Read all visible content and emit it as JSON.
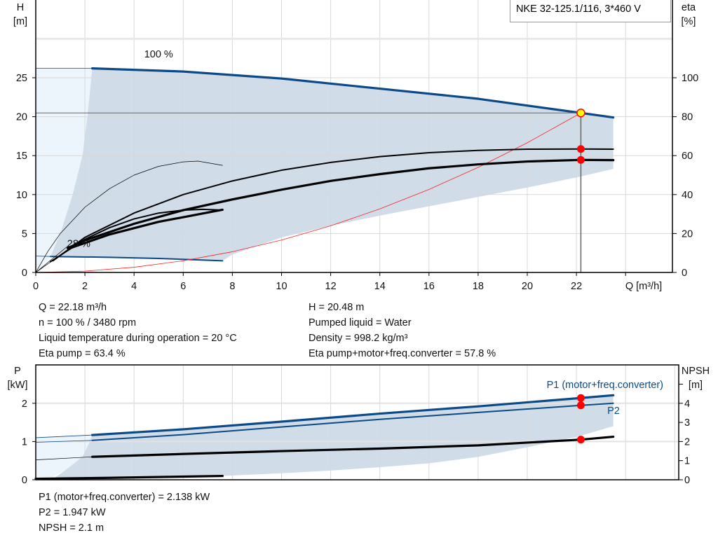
{
  "legend_title": "NKE 32-125.1/116, 3*460 V",
  "info": {
    "left": [
      "Q = 22.18 m³/h",
      "n = 100 % / 3480 rpm",
      "Liquid temperature during operation = 20 °C",
      "Eta pump = 63.4 %"
    ],
    "right": [
      "H = 20.48 m",
      "Pumped liquid = Water",
      "Density = 998.2 kg/m³",
      "Eta pump+motor+freq.converter = 57.8 %"
    ],
    "bottom": [
      "P1 (motor+freq.converter) = 2.138 kW",
      "P2 = 1.947 kW",
      "NPSH = 2.1 m"
    ]
  },
  "colors": {
    "curve": "#0b4a86",
    "shade": "#d0dce8",
    "light_shade": "#edf5fc",
    "system": "#ff2020",
    "point": "#ff0000",
    "duty": "#ffff00"
  },
  "chart_data": [
    {
      "type": "line",
      "title": "",
      "xlabel": "Q [m³/h]",
      "ylabel_left": [
        "H",
        "[m]"
      ],
      "ylabel_right": [
        "eta",
        "[%]"
      ],
      "xlim": [
        0,
        25.9
      ],
      "ylim_left": [
        0,
        35
      ],
      "ylim_right": [
        0,
        140
      ],
      "x_ticks": [
        "0",
        "2",
        "4",
        "6",
        "8",
        "10",
        "12",
        "14",
        "16",
        "18",
        "20",
        "22"
      ],
      "y_ticks_left": [
        "0",
        "5",
        "10",
        "15",
        "20",
        "25"
      ],
      "y_ticks_right": [
        "0",
        "20",
        "40",
        "60",
        "80",
        "100"
      ],
      "grid": true,
      "annotations": [
        {
          "text": "100 %",
          "x": 5,
          "y": 27.6
        },
        {
          "text": "28 %",
          "x": 1.75,
          "y": 3.3
        }
      ],
      "series": [
        {
          "axis": "H",
          "style": "thick-blue",
          "points": [
            [
              2.3,
              26.2
            ],
            [
              6,
              25.8
            ],
            [
              10,
              24.9
            ],
            [
              14,
              23.6
            ],
            [
              18,
              22.3
            ],
            [
              22.18,
              20.48
            ],
            [
              23.5,
              19.9
            ]
          ]
        },
        {
          "axis": "H",
          "style": "thin-blue",
          "points": [
            [
              0,
              26.2
            ],
            [
              2.3,
              26.2
            ]
          ]
        },
        {
          "axis": "H",
          "style": "blue",
          "points": [
            [
              0.6,
              2.05
            ],
            [
              3,
              1.95
            ],
            [
              5,
              1.8
            ],
            [
              7.6,
              1.5
            ]
          ]
        },
        {
          "axis": "H",
          "style": "thin-blue",
          "points": [
            [
              0,
              2.1
            ],
            [
              0.6,
              2.05
            ]
          ]
        },
        {
          "axis": "H",
          "style": "system",
          "points": [
            [
              0,
              0
            ],
            [
              2,
              0.17
            ],
            [
              4,
              0.67
            ],
            [
              6,
              1.5
            ],
            [
              8,
              2.66
            ],
            [
              10,
              4.16
            ],
            [
              12,
              5.99
            ],
            [
              14,
              8.16
            ],
            [
              16,
              10.66
            ],
            [
              18,
              13.49
            ],
            [
              20,
              16.65
            ],
            [
              22.18,
              20.48
            ]
          ]
        },
        {
          "axis": "eta",
          "style": "black",
          "points": [
            [
              0.7,
              6
            ],
            [
              2,
              18
            ],
            [
              4,
              30.5
            ],
            [
              6,
              40
            ],
            [
              8,
              47
            ],
            [
              10,
              52.5
            ],
            [
              12,
              56.5
            ],
            [
              14,
              59.5
            ],
            [
              16,
              61.5
            ],
            [
              18,
              62.7
            ],
            [
              20,
              63.3
            ],
            [
              22.18,
              63.4
            ],
            [
              23.5,
              63.3
            ]
          ]
        },
        {
          "axis": "eta",
          "style": "thick-black",
          "points": [
            [
              1.3,
              12.5
            ],
            [
              2,
              16.5
            ],
            [
              4,
              25
            ],
            [
              6,
              32
            ],
            [
              8,
              37.5
            ],
            [
              10,
              42.5
            ],
            [
              12,
              47
            ],
            [
              14,
              50.5
            ],
            [
              16,
              53.5
            ],
            [
              18,
              55.5
            ],
            [
              20,
              57
            ],
            [
              22.18,
              57.8
            ],
            [
              23.5,
              57.7
            ]
          ]
        },
        {
          "axis": "eta",
          "style": "thin-black",
          "points": [
            [
              0,
              0
            ],
            [
              0.5,
              11
            ],
            [
              1,
              20
            ],
            [
              2,
              33.5
            ],
            [
              3,
              43
            ],
            [
              4,
              50
            ],
            [
              5,
              54.5
            ],
            [
              6,
              56.8
            ],
            [
              6.6,
              57.2
            ],
            [
              7.6,
              55
            ]
          ]
        },
        {
          "axis": "eta",
          "style": "black",
          "points": [
            [
              0.6,
              5.5
            ],
            [
              2,
              17
            ],
            [
              3,
              23
            ],
            [
              4,
              27.5
            ],
            [
              5,
              30.5
            ],
            [
              6,
              32
            ],
            [
              6.8,
              32.4
            ],
            [
              7.6,
              32
            ]
          ]
        },
        {
          "axis": "eta",
          "style": "thick-black",
          "points": [
            [
              1.4,
              12.5
            ],
            [
              3,
              19.5
            ],
            [
              5,
              26
            ],
            [
              7.6,
              32.2
            ]
          ]
        },
        {
          "axis": "eta",
          "style": "thin-black",
          "points": [
            [
              0,
              0
            ],
            [
              1.4,
              12.5
            ]
          ]
        },
        {
          "axis": "eta",
          "style": "thin-black",
          "points": [
            [
              0,
              0
            ],
            [
              1.3,
              13.5
            ]
          ]
        }
      ],
      "operating_point": {
        "Q": 22.18,
        "H": 20.48,
        "eta_pump": 63.4,
        "eta_total": 57.8
      }
    },
    {
      "type": "line",
      "title": "",
      "ylabel_left": [
        "P",
        "[kW]"
      ],
      "ylabel_right": [
        "NPSH",
        "[m]"
      ],
      "xlim": [
        0,
        26.2
      ],
      "ylim_left": [
        0,
        2.95
      ],
      "ylim_right": [
        0,
        5.9
      ],
      "y_ticks_left": [
        "0",
        "1",
        "2"
      ],
      "y_ticks_right": [
        "0",
        "1",
        "2",
        "3",
        "4"
      ],
      "grid": true,
      "series": [
        {
          "name": "P1 (motor+freq.converter)",
          "axis": "P",
          "style": "thick-blue",
          "points": [
            [
              2.3,
              1.17
            ],
            [
              6,
              1.32
            ],
            [
              10,
              1.52
            ],
            [
              14,
              1.73
            ],
            [
              18,
              1.92
            ],
            [
              22.18,
              2.138
            ],
            [
              23.5,
              2.21
            ]
          ]
        },
        {
          "axis": "P",
          "style": "thin-blue",
          "points": [
            [
              0,
              1.1
            ],
            [
              2.3,
              1.17
            ]
          ]
        },
        {
          "name": "P2",
          "axis": "P",
          "style": "blue",
          "points": [
            [
              2.3,
              1.03
            ],
            [
              6,
              1.18
            ],
            [
              10,
              1.38
            ],
            [
              14,
              1.58
            ],
            [
              18,
              1.76
            ],
            [
              22.18,
              1.947
            ],
            [
              23.5,
              2.0
            ]
          ]
        },
        {
          "axis": "P",
          "style": "thin-blue",
          "points": [
            [
              0,
              0.98
            ],
            [
              2.3,
              1.03
            ]
          ]
        },
        {
          "axis": "NPSH",
          "style": "thick-black",
          "points": [
            [
              2.3,
              1.2
            ],
            [
              6,
              1.35
            ],
            [
              10,
              1.5
            ],
            [
              14,
              1.63
            ],
            [
              18,
              1.8
            ],
            [
              22.18,
              2.1
            ],
            [
              23.5,
              2.25
            ]
          ]
        },
        {
          "axis": "NPSH",
          "style": "thin-black",
          "points": [
            [
              0,
              1.04
            ],
            [
              2.3,
              1.2
            ]
          ]
        },
        {
          "axis": "NPSH",
          "style": "thick-black",
          "points": [
            [
              0,
              0.05
            ],
            [
              3,
              0.1
            ],
            [
              7.6,
              0.2
            ]
          ]
        }
      ],
      "operating_point": {
        "Q": 22.18,
        "P1": 2.138,
        "P2": 1.947,
        "NPSH": 2.1
      }
    }
  ]
}
